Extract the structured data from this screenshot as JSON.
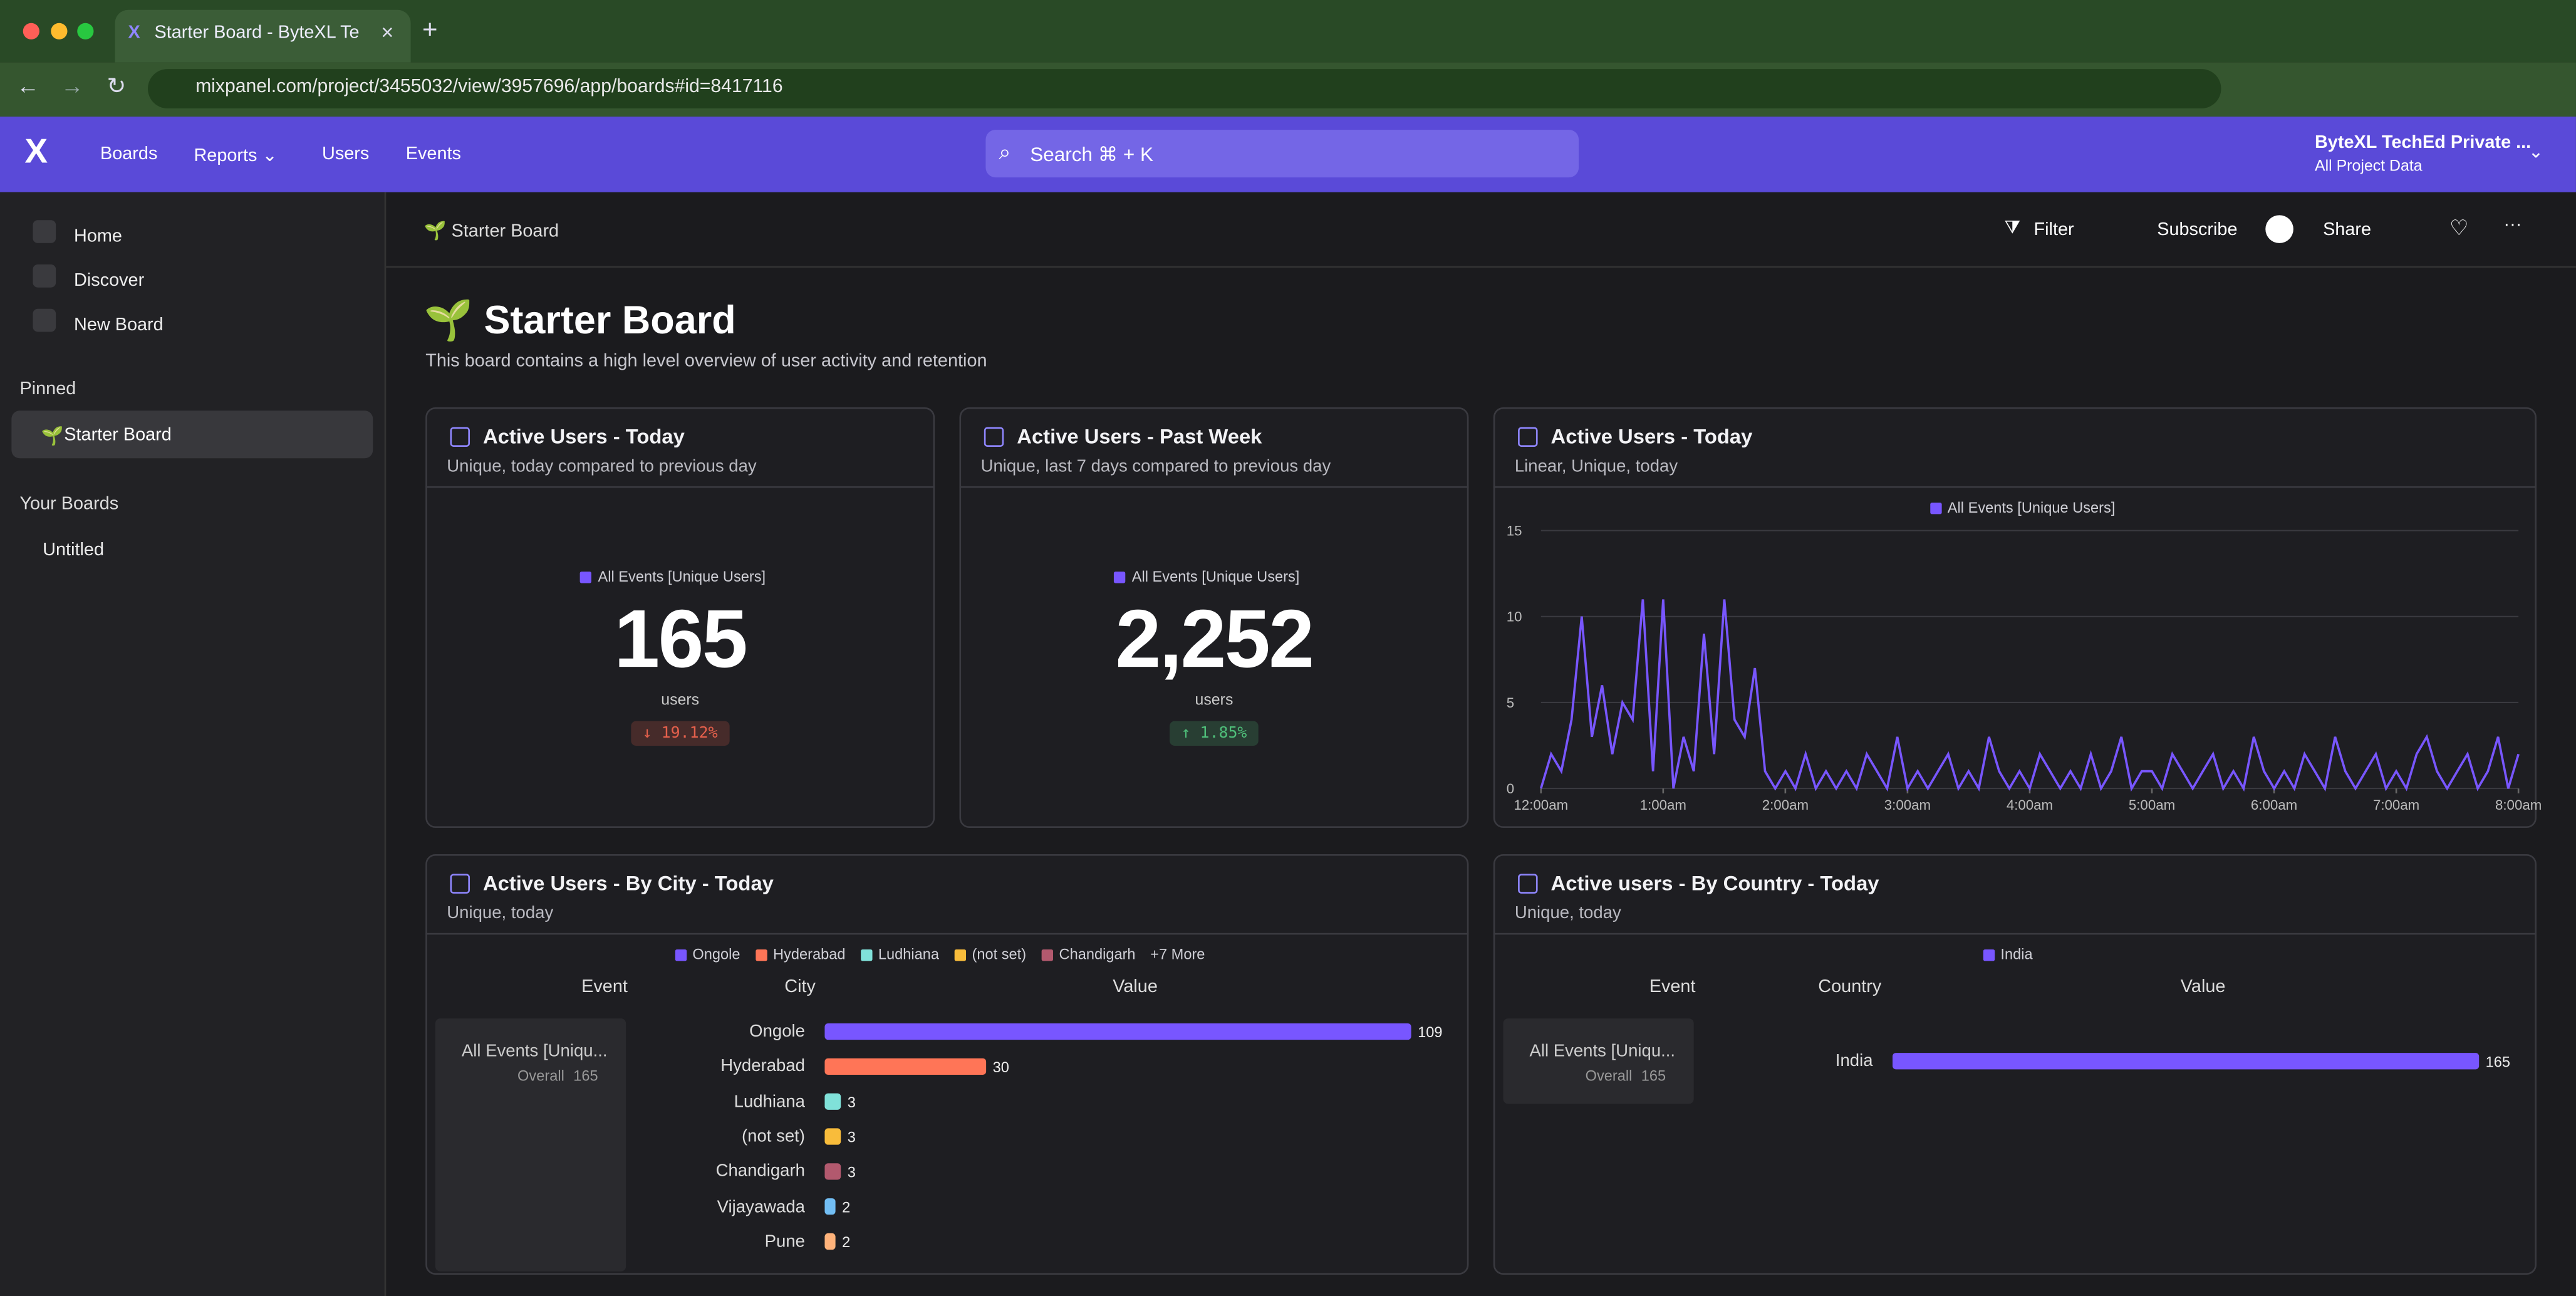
{
  "browser": {
    "tab_title": "Starter Board - ByteXL Te",
    "url": "mixpanel.com/project/3455032/view/3957696/app/boards#id=8417116"
  },
  "nav": {
    "items": [
      "Boards",
      "Reports",
      "Users",
      "Events"
    ],
    "search": "Search ⌘ + K",
    "org": "ByteXL TechEd Private ...",
    "project": "All Project Data"
  },
  "sidebar": {
    "items": [
      "Home",
      "Discover",
      "New Board"
    ],
    "pinned_heading": "Pinned",
    "pinned": [
      "Starter Board"
    ],
    "boards_heading": "Your Boards",
    "boards": [
      "Untitled"
    ]
  },
  "toolbar": {
    "breadcrumb": "Starter Board",
    "actions": [
      "Filter",
      "Subscribe",
      "Share"
    ]
  },
  "board": {
    "title": "Starter Board",
    "description": "This board contains a high level overview of user activity and retention"
  },
  "cards": [
    {
      "title": "Active Users - Today",
      "subtitle": "Unique, today compared to previous day",
      "legend": "All Events [Unique Users]",
      "value": "165",
      "unit": "users",
      "change": "↓ 19.12%",
      "change_color": "#e5604c"
    },
    {
      "title": "Active Users - Past Week",
      "subtitle": "Unique, last 7 days compared to previous day",
      "legend": "All Events [Unique Users]",
      "value": "2,252",
      "unit": "users",
      "change": "↑ 1.85%",
      "change_color": "#4fbf7a"
    },
    {
      "title": "Active Users - Today",
      "subtitle": "Linear, Unique, today",
      "chart": {
        "type": "line",
        "ylim": [
          0,
          15
        ],
        "yticks": [
          0,
          5,
          10,
          15
        ],
        "grid": true,
        "xlim": [
          0,
          96
        ],
        "xticks": [
          {
            "value": 0,
            "label": "12:00am"
          },
          {
            "value": 12,
            "label": "1:00am"
          },
          {
            "value": 24,
            "label": "2:00am"
          },
          {
            "value": 36,
            "label": "3:00am"
          },
          {
            "value": 48,
            "label": "4:00am"
          },
          {
            "value": 60,
            "label": "5:00am"
          },
          {
            "value": 72,
            "label": "6:00am"
          },
          {
            "value": 84,
            "label": "7:00am"
          },
          {
            "value": 96,
            "label": "8:00am"
          }
        ],
        "series": [
          {
            "name": "All Events [Unique Users]",
            "color": "#7856ff",
            "values": [
              0,
              2,
              1,
              4,
              10,
              3,
              6,
              2,
              5,
              4,
              11,
              1,
              11,
              0,
              3,
              1,
              9,
              2,
              11,
              4,
              3,
              7,
              1,
              0,
              1,
              0,
              2,
              0,
              1,
              0,
              1,
              0,
              2,
              1,
              0,
              3,
              0,
              1,
              0,
              1,
              2,
              0,
              1,
              0,
              3,
              1,
              0,
              1,
              0,
              2,
              1,
              0,
              1,
              0,
              2,
              0,
              1,
              3,
              0,
              1,
              1,
              0,
              2,
              1,
              0,
              1,
              2,
              0,
              1,
              0,
              3,
              1,
              0,
              1,
              0,
              2,
              1,
              0,
              3,
              1,
              0,
              1,
              2,
              0,
              1,
              0,
              2,
              3,
              1,
              0,
              1,
              2,
              0,
              1,
              3,
              0,
              2
            ]
          }
        ]
      }
    },
    {
      "title": "Active Users - By City - Today",
      "subtitle": "Unique, today",
      "more": "+7 More",
      "headers": [
        "Event",
        "City",
        "Value"
      ],
      "event": "All Events [Uniqu...",
      "overall_label": "Overall",
      "overall": 165,
      "chart": {
        "type": "bar",
        "categories": [
          "Ongole",
          "Hyderabad",
          "Ludhiana",
          "(not set)",
          "Chandigarh",
          "Vijayawada",
          "Pune"
        ],
        "values": [
          109,
          30,
          3,
          3,
          3,
          2,
          2
        ],
        "colors": [
          "#7856ff",
          "#ff7557",
          "#80e1d9",
          "#f8bc3b",
          "#b2596e",
          "#72bef4",
          "#ffb27a"
        ],
        "legend_count": 5
      }
    },
    {
      "title": "Active users - By Country - Today",
      "subtitle": "Unique, today",
      "headers": [
        "Event",
        "Country",
        "Value"
      ],
      "event": "All Events [Uniqu...",
      "overall_label": "Overall",
      "overall": 165,
      "chart": {
        "type": "bar",
        "categories": [
          "India"
        ],
        "values": [
          165
        ],
        "colors": [
          "#7856ff"
        ],
        "legend_count": 1
      }
    }
  ]
}
